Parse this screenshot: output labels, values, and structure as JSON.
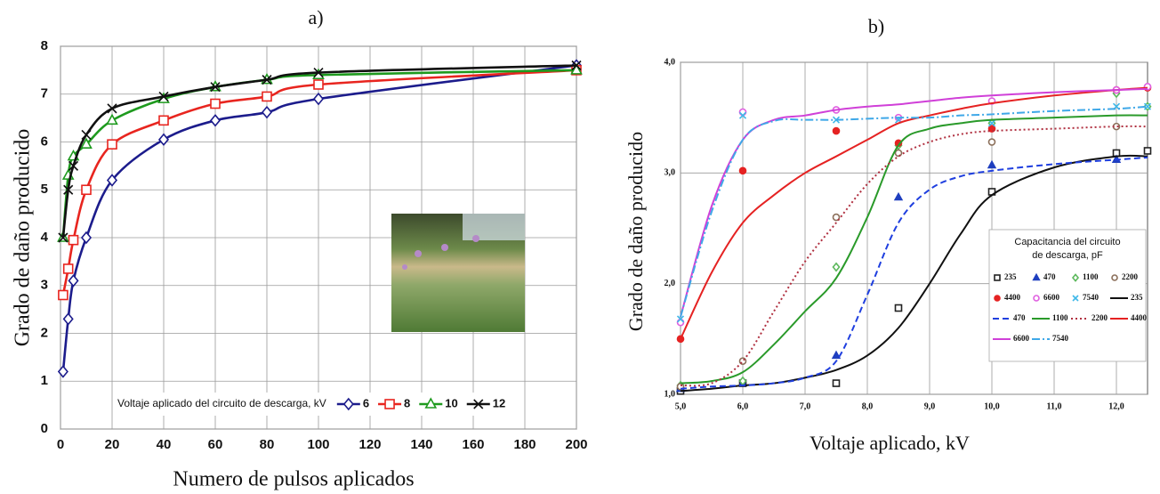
{
  "chart_data": [
    {
      "type": "line",
      "title": "a)",
      "xlabel": "Numero de pulsos aplicados",
      "ylabel": "Grado de daño producido",
      "x": [
        1,
        3,
        5,
        10,
        20,
        40,
        60,
        80,
        100,
        200
      ],
      "xlim": [
        0,
        200
      ],
      "xticks": [
        0,
        20,
        40,
        60,
        80,
        100,
        120,
        140,
        160,
        180,
        200
      ],
      "ylim": [
        0,
        8
      ],
      "yticks": [
        0,
        1,
        2,
        3,
        4,
        5,
        6,
        7,
        8
      ],
      "grid": true,
      "legend_title": "Voltaje aplicado del circuito de descarga, kV",
      "legend": "lower right",
      "series": [
        {
          "name": "6",
          "color": "#1c1c8c",
          "marker": "diamond",
          "dash": "solid",
          "values": [
            1.2,
            2.3,
            3.1,
            4.0,
            5.2,
            6.05,
            6.45,
            6.62,
            6.9,
            7.6
          ]
        },
        {
          "name": "8",
          "color": "#e8251f",
          "marker": "square",
          "dash": "solid",
          "values": [
            2.8,
            3.35,
            3.95,
            5.0,
            5.95,
            6.45,
            6.8,
            6.95,
            7.2,
            7.5
          ]
        },
        {
          "name": "10",
          "color": "#1e9a1e",
          "marker": "triangle",
          "dash": "solid",
          "values": [
            4.0,
            5.3,
            5.7,
            5.95,
            6.45,
            6.9,
            7.15,
            7.3,
            7.4,
            7.5
          ]
        },
        {
          "name": "12",
          "color": "#111111",
          "marker": "x",
          "dash": "solid",
          "values": [
            4.0,
            5.0,
            5.5,
            6.15,
            6.7,
            6.95,
            7.15,
            7.3,
            7.45,
            7.6
          ]
        }
      ]
    },
    {
      "type": "line",
      "title": "b)",
      "xlabel": "Voltaje aplicado, kV",
      "ylabel": "Grado de daño producido",
      "x": [
        5,
        6,
        7.5,
        8.5,
        10,
        12,
        12.5
      ],
      "xlim": [
        5,
        12.5
      ],
      "xticks": [
        {
          "value": 5,
          "label": "5,0"
        },
        {
          "value": 6,
          "label": "6,0"
        },
        {
          "value": 7,
          "label": "7,0"
        },
        {
          "value": 8,
          "label": "8,0"
        },
        {
          "value": 9,
          "label": "9,0"
        },
        {
          "value": 10,
          "label": "10,0"
        },
        {
          "value": 11,
          "label": "11,0"
        },
        {
          "value": 12,
          "label": "12,0"
        }
      ],
      "ylim": [
        1,
        4
      ],
      "yticks": [
        {
          "value": 1,
          "label": "1,0"
        },
        {
          "value": 2,
          "label": "2,0"
        },
        {
          "value": 3,
          "label": "3,0"
        },
        {
          "value": 4,
          "label": "4,0"
        }
      ],
      "grid": true,
      "legend_title": [
        "Capacitancia del circuito",
        "de descarga, pF"
      ],
      "legend": "center right",
      "series": [
        {
          "name": "235",
          "color": "#222222",
          "marker": "square",
          "values": [
            1.03,
            1.1,
            1.1,
            1.78,
            2.83,
            3.18,
            3.2
          ]
        },
        {
          "name": "470",
          "color": "#1f3fbf",
          "marker": "triangle",
          "marker_fill": true,
          "values": [
            1.05,
            1.1,
            1.35,
            2.78,
            3.07,
            3.12,
            null
          ]
        },
        {
          "name": "1100",
          "color": "#5cb85c",
          "marker": "diamond",
          "values": [
            1.08,
            1.12,
            2.15,
            3.25,
            3.45,
            3.72,
            3.6
          ]
        },
        {
          "name": "2200",
          "color": "#8b6f5a",
          "marker": "circle",
          "values": [
            1.07,
            1.3,
            2.6,
            3.18,
            3.28,
            3.42,
            null
          ]
        },
        {
          "name": "4400",
          "color": "#e52222",
          "marker": "circle",
          "marker_fill": true,
          "values": [
            1.5,
            3.02,
            3.38,
            3.27,
            3.4,
            3.75,
            3.77
          ]
        },
        {
          "name": "6600",
          "color": "#e060e0",
          "marker": "circle",
          "values": [
            1.65,
            3.55,
            3.57,
            3.5,
            3.65,
            3.75,
            3.78
          ]
        },
        {
          "name": "7540",
          "color": "#3fb8e8",
          "marker": "x",
          "values": [
            1.68,
            3.52,
            3.48,
            3.48,
            3.45,
            3.6,
            3.6
          ]
        },
        {
          "name": "235",
          "color": "#111111",
          "dash": "solid",
          "x": [
            5,
            5.5,
            6,
            6.5,
            7,
            7.5,
            8,
            8.5,
            9,
            9.5,
            10,
            11,
            12,
            12.5
          ],
          "values": [
            1.03,
            1.05,
            1.08,
            1.1,
            1.15,
            1.22,
            1.35,
            1.6,
            2.0,
            2.45,
            2.8,
            3.05,
            3.15,
            3.15
          ]
        },
        {
          "name": "470",
          "color": "#1f3fdf",
          "dash": "dashed",
          "x": [
            5,
            5.5,
            6,
            6.5,
            7,
            7.5,
            8,
            8.5,
            9,
            9.5,
            10,
            11,
            12,
            12.5
          ],
          "values": [
            1.05,
            1.07,
            1.08,
            1.1,
            1.15,
            1.3,
            1.9,
            2.55,
            2.85,
            2.97,
            3.02,
            3.08,
            3.12,
            3.14
          ]
        },
        {
          "name": "1100",
          "color": "#2a9a2a",
          "dash": "solid",
          "x": [
            5,
            5.5,
            6,
            6.5,
            7,
            7.5,
            8,
            8.5,
            9,
            9.5,
            10,
            11,
            12,
            12.5
          ],
          "values": [
            1.1,
            1.12,
            1.2,
            1.45,
            1.75,
            2.05,
            2.6,
            3.25,
            3.4,
            3.45,
            3.48,
            3.5,
            3.52,
            3.52
          ]
        },
        {
          "name": "2200",
          "color": "#b03040",
          "dash": "dotted",
          "x": [
            5,
            5.5,
            6,
            6.5,
            7,
            7.5,
            8,
            8.5,
            9,
            9.5,
            10,
            11,
            12,
            12.5
          ],
          "values": [
            1.08,
            1.1,
            1.3,
            1.75,
            2.2,
            2.55,
            2.9,
            3.15,
            3.28,
            3.35,
            3.38,
            3.4,
            3.42,
            3.42
          ]
        },
        {
          "name": "4400",
          "color": "#e52222",
          "dash": "solid",
          "x": [
            5,
            5.5,
            6,
            6.5,
            7,
            7.5,
            8,
            8.5,
            9,
            9.5,
            10,
            11,
            12,
            12.5
          ],
          "values": [
            1.5,
            2.1,
            2.55,
            2.8,
            3.0,
            3.15,
            3.3,
            3.45,
            3.52,
            3.58,
            3.63,
            3.7,
            3.75,
            3.77
          ]
        },
        {
          "name": "6600",
          "color": "#d040d8",
          "dash": "solid",
          "x": [
            5,
            5.5,
            6,
            6.5,
            7,
            7.5,
            8,
            8.5,
            9,
            9.5,
            10,
            11,
            12,
            12.5
          ],
          "values": [
            1.7,
            2.7,
            3.3,
            3.48,
            3.52,
            3.57,
            3.6,
            3.62,
            3.65,
            3.68,
            3.7,
            3.73,
            3.75,
            3.76
          ]
        },
        {
          "name": "7540",
          "color": "#3fa8e8",
          "dash": "dashdot",
          "x": [
            5,
            5.5,
            6,
            6.5,
            7,
            7.5,
            8,
            8.5,
            9,
            9.5,
            10,
            11,
            12,
            12.5
          ],
          "values": [
            1.7,
            2.65,
            3.3,
            3.47,
            3.48,
            3.48,
            3.49,
            3.5,
            3.5,
            3.52,
            3.53,
            3.56,
            3.58,
            3.6
          ]
        }
      ]
    }
  ]
}
